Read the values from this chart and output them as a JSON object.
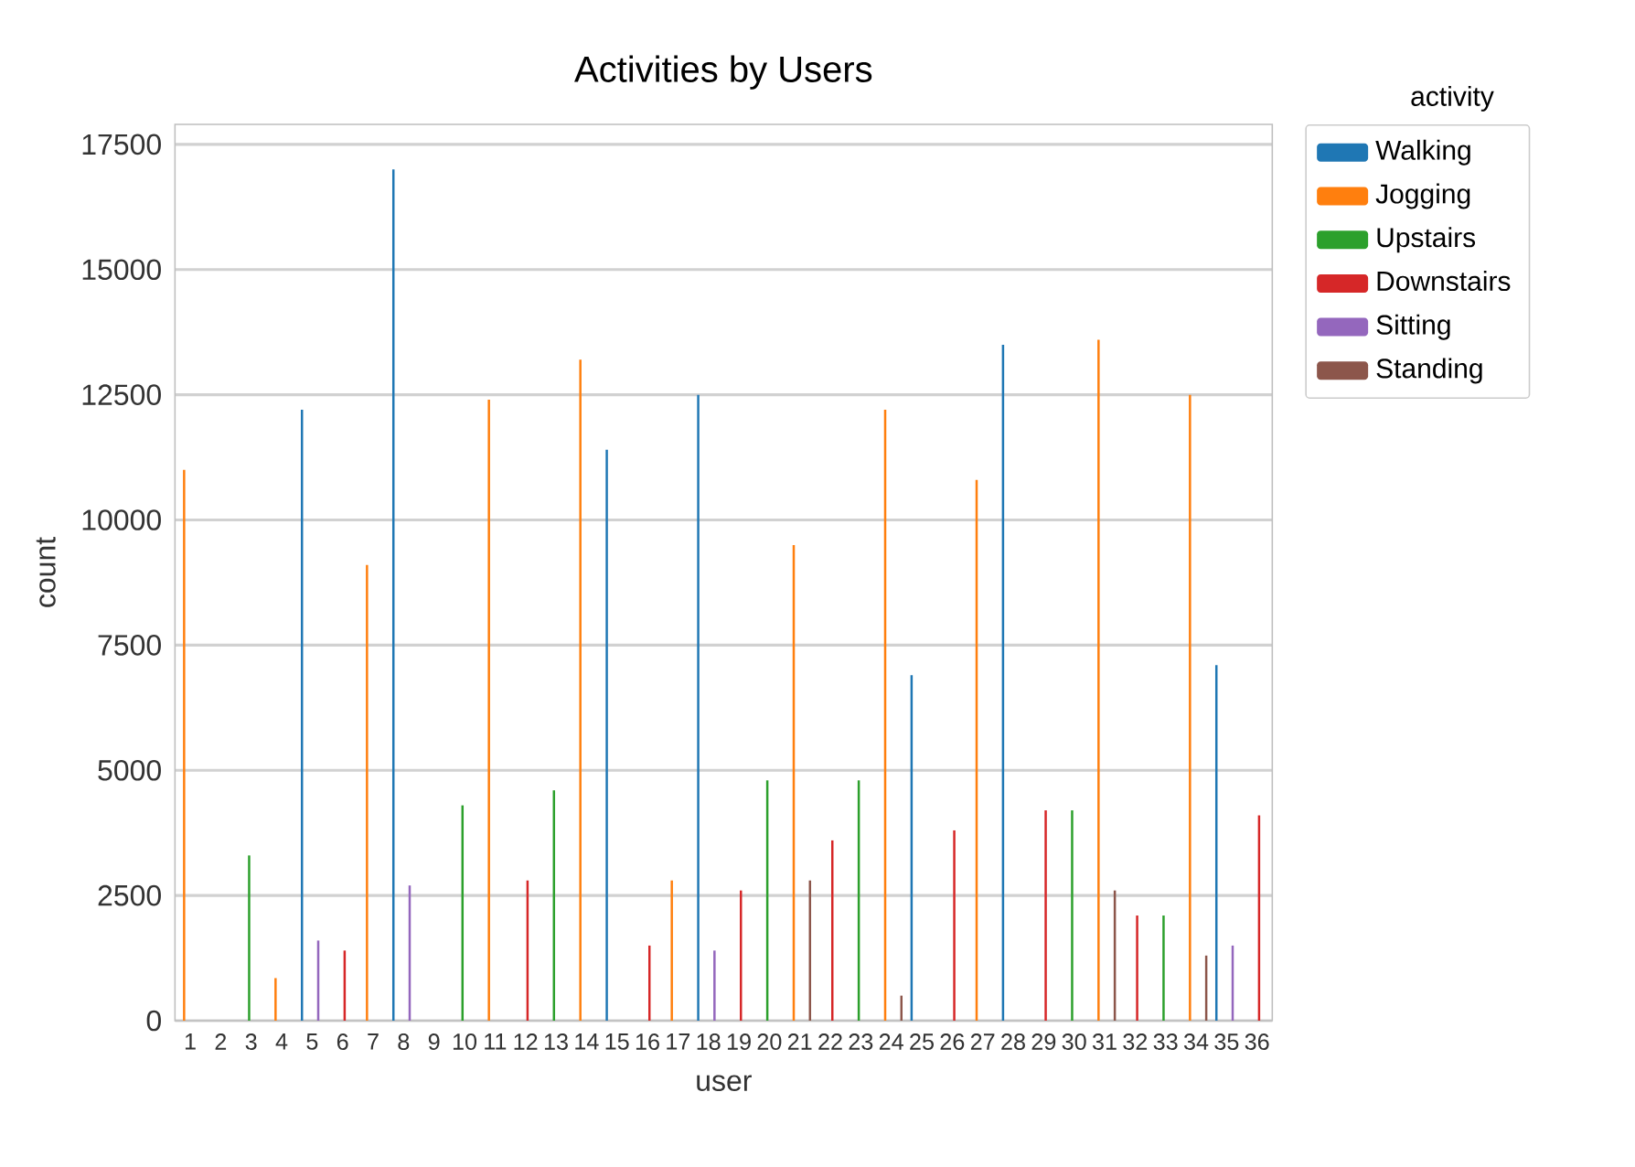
{
  "chart_data": {
    "type": "bar",
    "title": "Activities by Users",
    "xlabel": "user",
    "ylabel": "count",
    "legend_title": "activity",
    "categories": [
      "1",
      "2",
      "3",
      "4",
      "5",
      "6",
      "7",
      "8",
      "9",
      "10",
      "11",
      "12",
      "13",
      "14",
      "15",
      "16",
      "17",
      "18",
      "19",
      "20",
      "21",
      "22",
      "23",
      "24",
      "25",
      "26",
      "27",
      "28",
      "29",
      "30",
      "31",
      "32",
      "33",
      "34",
      "35",
      "36"
    ],
    "series": [
      {
        "name": "Walking",
        "color": "#1f77b4",
        "values": [
          null,
          null,
          null,
          null,
          12200,
          null,
          null,
          17000,
          null,
          null,
          null,
          null,
          null,
          null,
          11400,
          null,
          null,
          12500,
          null,
          null,
          null,
          null,
          null,
          null,
          6900,
          null,
          null,
          13500,
          null,
          null,
          null,
          null,
          null,
          null,
          7100,
          null
        ]
      },
      {
        "name": "Jogging",
        "color": "#ff7f0e",
        "values": [
          11000,
          null,
          null,
          850,
          null,
          null,
          9100,
          null,
          null,
          null,
          12400,
          null,
          null,
          13200,
          null,
          null,
          2800,
          null,
          null,
          null,
          9500,
          null,
          null,
          12200,
          null,
          null,
          10800,
          null,
          null,
          null,
          13600,
          null,
          null,
          12500,
          null,
          null
        ]
      },
      {
        "name": "Upstairs",
        "color": "#2ca02c",
        "values": [
          null,
          null,
          3300,
          null,
          null,
          null,
          null,
          null,
          null,
          4300,
          null,
          null,
          4600,
          null,
          null,
          null,
          null,
          null,
          null,
          4800,
          null,
          null,
          4800,
          null,
          null,
          null,
          null,
          null,
          null,
          4200,
          null,
          null,
          2100,
          null,
          null,
          null
        ]
      },
      {
        "name": "Downstairs",
        "color": "#d62728",
        "values": [
          null,
          null,
          null,
          null,
          null,
          1400,
          null,
          null,
          null,
          null,
          null,
          2800,
          null,
          null,
          null,
          1500,
          null,
          null,
          2600,
          null,
          null,
          3600,
          null,
          null,
          null,
          3800,
          null,
          null,
          4200,
          null,
          null,
          2100,
          null,
          null,
          null,
          4100
        ]
      },
      {
        "name": "Sitting",
        "color": "#9467bd",
        "values": [
          null,
          null,
          null,
          null,
          1600,
          null,
          null,
          2700,
          null,
          null,
          null,
          null,
          null,
          null,
          null,
          null,
          null,
          1400,
          null,
          null,
          null,
          null,
          null,
          null,
          null,
          null,
          null,
          null,
          null,
          null,
          null,
          null,
          null,
          null,
          1500,
          null
        ]
      },
      {
        "name": "Standing",
        "color": "#8c564b",
        "values": [
          null,
          null,
          null,
          null,
          null,
          null,
          null,
          null,
          null,
          null,
          null,
          null,
          null,
          null,
          null,
          null,
          null,
          null,
          null,
          null,
          2800,
          null,
          null,
          500,
          null,
          null,
          null,
          null,
          null,
          null,
          2600,
          null,
          null,
          1300,
          null,
          null
        ]
      }
    ],
    "ylim": [
      0,
      17900
    ],
    "yticks": [
      0,
      2500,
      5000,
      7500,
      10000,
      12500,
      15000,
      17500
    ],
    "grid": "y",
    "legend": "right"
  }
}
